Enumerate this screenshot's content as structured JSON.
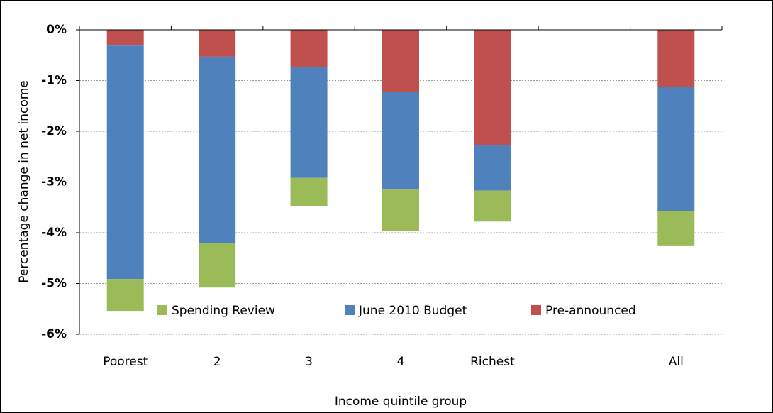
{
  "chart_data": {
    "type": "stacked_bar",
    "categories": [
      "Poorest",
      "2",
      "3",
      "4",
      "Richest",
      null,
      "All"
    ],
    "series": [
      {
        "name": "Spending Review",
        "color": "#9bbb59",
        "values": [
          -0.63,
          -0.87,
          -0.56,
          -0.81,
          -0.61,
          null,
          -0.68
        ]
      },
      {
        "name": "June 2010 Budget",
        "color": "#4f81bd",
        "values": [
          -4.6,
          -3.68,
          -2.19,
          -1.93,
          -0.89,
          null,
          -2.44
        ]
      },
      {
        "name": "Pre-announced",
        "color": "#c0504d",
        "values": [
          -0.31,
          -0.53,
          -0.73,
          -1.22,
          -2.28,
          null,
          -1.13
        ]
      }
    ],
    "ylim": [
      -6,
      0
    ],
    "yticks": [
      {
        "value": 0,
        "label": "0%"
      },
      {
        "value": -1,
        "label": "-1%"
      },
      {
        "value": -2,
        "label": "-2%"
      },
      {
        "value": -3,
        "label": "-3%"
      },
      {
        "value": -4,
        "label": "-4%"
      },
      {
        "value": -5,
        "label": "-5%"
      },
      {
        "value": -6,
        "label": "-6%"
      }
    ],
    "y_label": "Percentage change in net income",
    "x_label": "Income quintile group",
    "grid": true,
    "legend": "bottom"
  }
}
